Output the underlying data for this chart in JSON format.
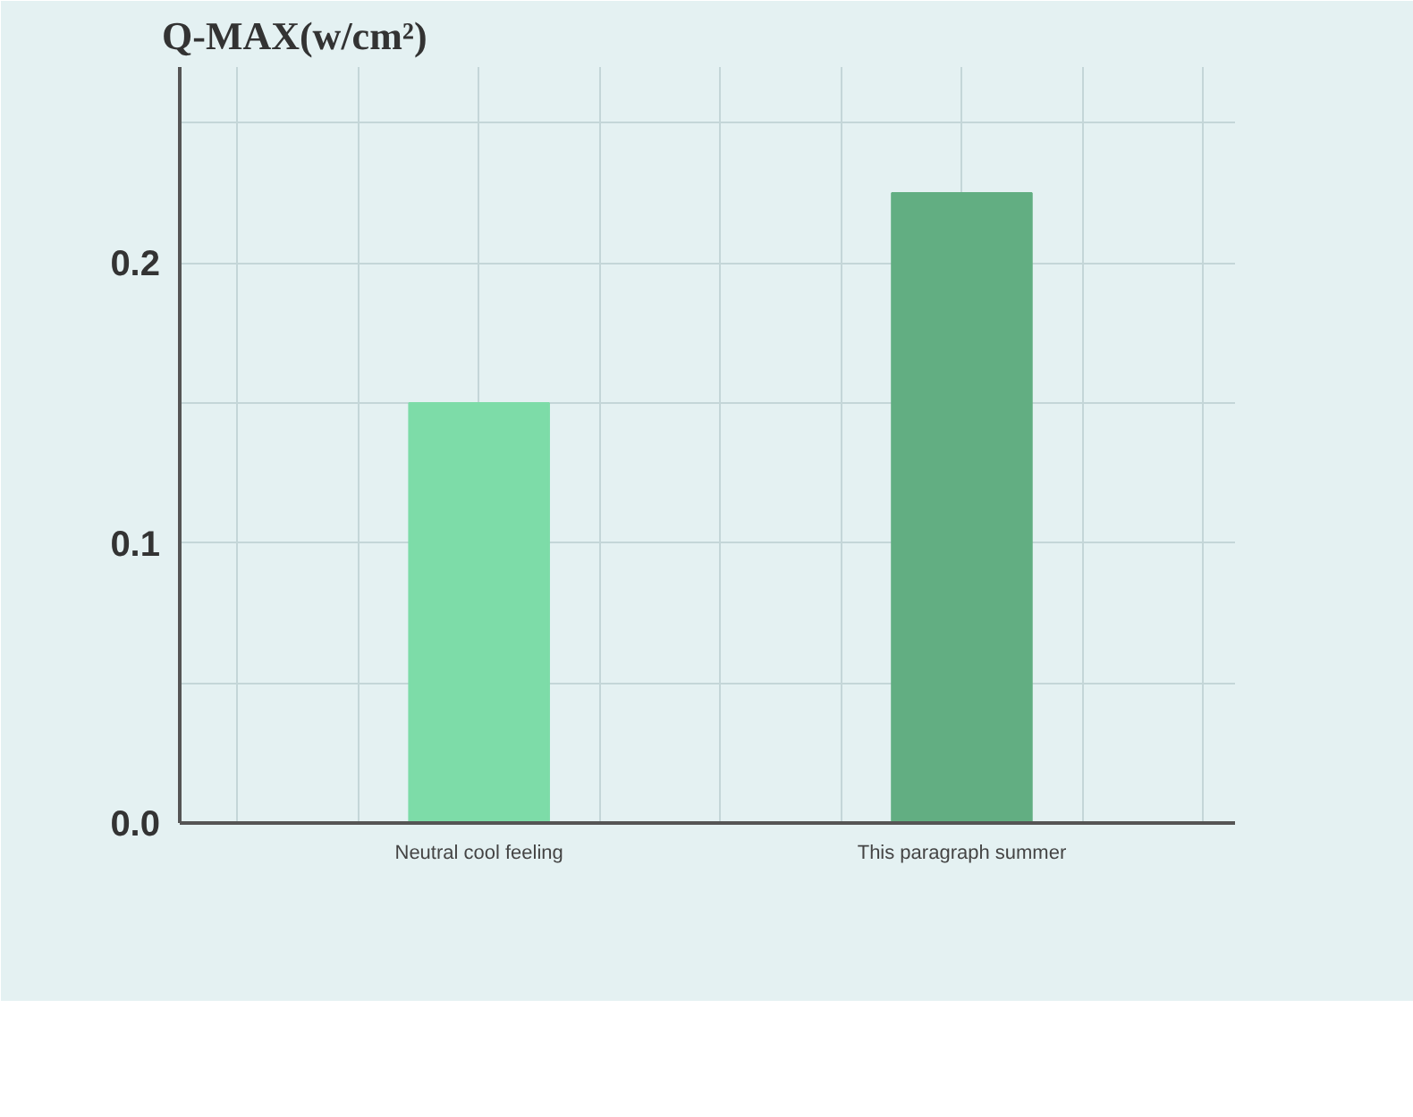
{
  "chart_data": {
    "type": "bar",
    "ylabel": "Q-MAX(w/cm²)",
    "categories": [
      "Neutral cool feeling",
      "This paragraph summer"
    ],
    "values": [
      0.15,
      0.225
    ],
    "colors": [
      "#7ddca8",
      "#62ae82"
    ],
    "ylim": [
      0,
      0.27
    ],
    "yticks": [
      {
        "value": 0,
        "label": "0.0"
      },
      {
        "value": 0.05,
        "label": null
      },
      0.1,
      {
        "value": 0.15,
        "label": null
      },
      0.2,
      {
        "value": 0.25,
        "label": null
      }
    ],
    "grid": true
  }
}
